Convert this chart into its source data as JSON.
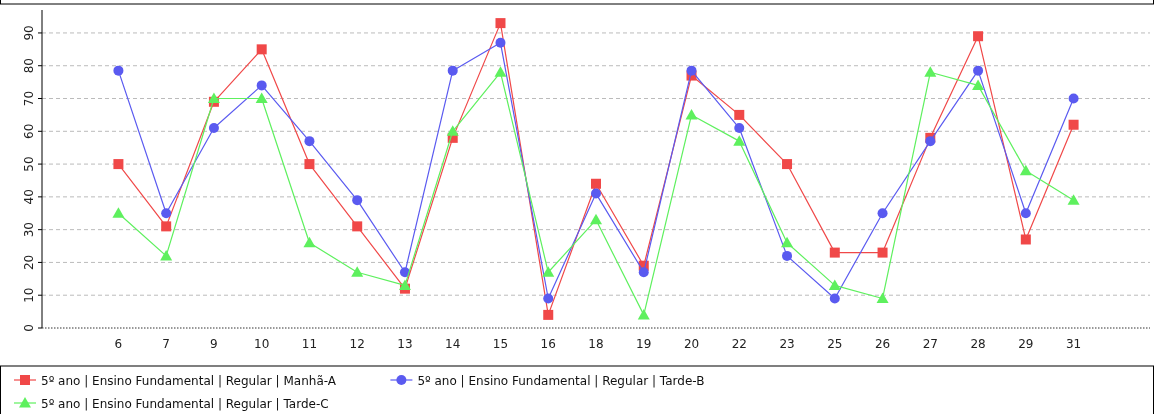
{
  "chart_data": {
    "type": "line",
    "categories": [
      "6",
      "7",
      "9",
      "10",
      "11",
      "12",
      "13",
      "14",
      "15",
      "16",
      "18",
      "19",
      "20",
      "22",
      "23",
      "25",
      "26",
      "27",
      "28",
      "29",
      "31"
    ],
    "series": [
      {
        "name": "5º ano | Ensino Fundamental | Regular | Manhã-A",
        "color": "#f04848",
        "marker": "square",
        "values": [
          50,
          31,
          69,
          85,
          50,
          31,
          12,
          58,
          93,
          4,
          44,
          19,
          77,
          65,
          50,
          23,
          23,
          58,
          89,
          27,
          62
        ]
      },
      {
        "name": "5º ano | Ensino Fundamental | Regular | Tarde-B",
        "color": "#5a5af0",
        "marker": "circle",
        "values": [
          78.5,
          35,
          61,
          74,
          57,
          39,
          17,
          78.5,
          87,
          9,
          41,
          17,
          78.5,
          61,
          22,
          9,
          35,
          57,
          78.5,
          35,
          70
        ]
      },
      {
        "name": "5º ano | Ensino Fundamental | Regular | Tarde-C",
        "color": "#5ef05e",
        "marker": "triangle",
        "values": [
          35,
          22,
          70,
          70,
          26,
          17,
          13,
          60,
          78,
          17,
          33,
          4,
          65,
          57,
          26,
          13,
          9,
          78,
          74,
          48,
          39
        ]
      }
    ],
    "ylim": [
      0,
      97
    ],
    "yticks": [
      0,
      10,
      20,
      30,
      40,
      50,
      60,
      70,
      80,
      90
    ],
    "grid": "y",
    "legend": "bottom",
    "line_style": "solid"
  }
}
